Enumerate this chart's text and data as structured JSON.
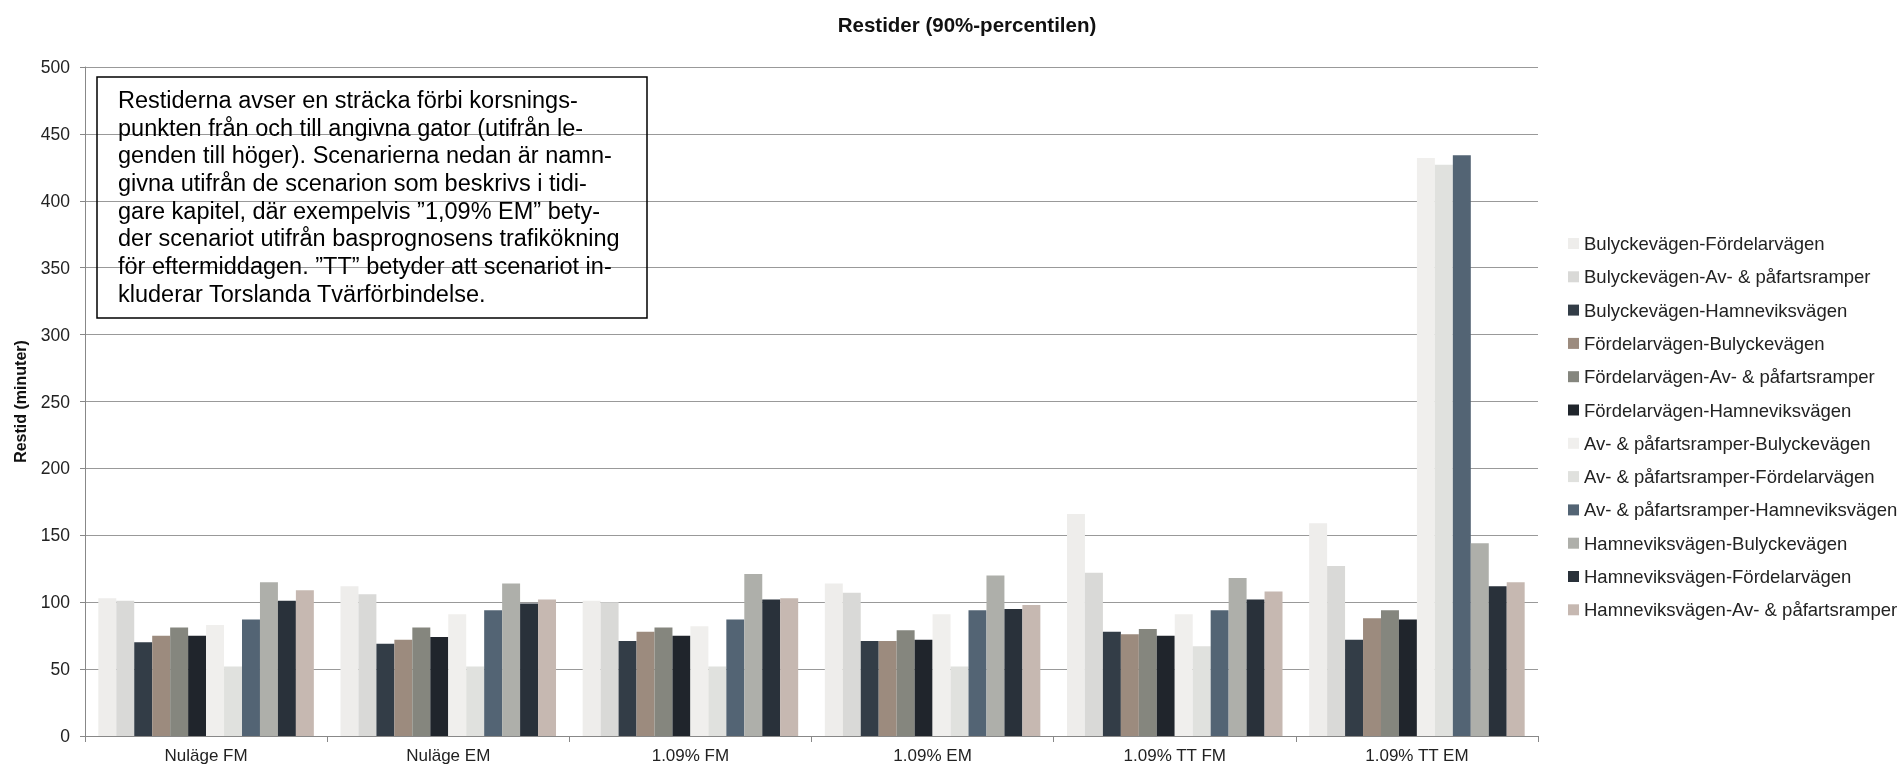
{
  "chart_data": {
    "type": "bar",
    "title": "Restider (90%-percentilen)",
    "ylabel": "Restid (minuter)",
    "annotations": [
      "Restiderna avser en sträcka förbi korsnings-\npunkten från och till angivna gator (utifrån le-\ngenden till höger). Scenarierna nedan är namn-\ngivna utifrån de scenarion som beskrivs i tidi-\ngare kapitel, där exempelvis ”1,09% EM” bety-\nder scenariot utifrån basprognosens trafikökning\nför eftermiddagen. ”TT” betyder att scenariot in-\nkluderar Torslanda Tvärförbindelse."
    ],
    "categories": [
      "Nuläge FM",
      "Nuläge EM",
      "1.09% FM",
      "1.09% EM",
      "1.09% TT FM",
      "1.09% TT EM"
    ],
    "series": [
      {
        "name": "Bulyckevägen-Fördelarvägen",
        "color": "#eeedeb",
        "values": [
          103,
          112,
          101,
          114,
          166,
          159
        ]
      },
      {
        "name": "Bulyckevägen-Av- & påfartsramper",
        "color": "#d9d9d7",
        "values": [
          101,
          106,
          100,
          107,
          122,
          127
        ]
      },
      {
        "name": "Bulyckevägen-Hamneviksvägen",
        "color": "#333d47",
        "values": [
          70,
          69,
          71,
          71,
          78,
          72
        ]
      },
      {
        "name": "Fördelarvägen-Bulyckevägen",
        "color": "#9c8b7e",
        "values": [
          75,
          72,
          78,
          71,
          76,
          88
        ]
      },
      {
        "name": "Fördelarvägen-Av- & påfartsramper",
        "color": "#85867e",
        "values": [
          81,
          81,
          81,
          79,
          80,
          94
        ]
      },
      {
        "name": "Fördelarvägen-Hamneviksvägen",
        "color": "#20252c",
        "values": [
          75,
          74,
          75,
          72,
          75,
          87
        ]
      },
      {
        "name": "Av- & påfartsramper-Bulyckevägen",
        "color": "#f0efed",
        "values": [
          83,
          91,
          82,
          91,
          91,
          432
        ]
      },
      {
        "name": "Av- & påfartsramper-Fördelarvägen",
        "color": "#e0e1de",
        "values": [
          52,
          52,
          52,
          52,
          67,
          427
        ]
      },
      {
        "name": "Av- & påfartsramper-Hamneviksvägen",
        "color": "#536474",
        "values": [
          87,
          94,
          87,
          94,
          94,
          434
        ]
      },
      {
        "name": "Hamneviksvägen-Bulyckevägen",
        "color": "#aeafaa",
        "values": [
          115,
          114,
          121,
          120,
          118,
          144
        ]
      },
      {
        "name": "Hamneviksvägen-Fördelarvägen",
        "color": "#29313a",
        "values": [
          101,
          99,
          102,
          95,
          102,
          112
        ]
      },
      {
        "name": "Hamneviksvägen-Av- & påfartsramper",
        "color": "#c6b8b1",
        "values": [
          109,
          102,
          103,
          98,
          108,
          115
        ]
      }
    ],
    "ylim": [
      0,
      500
    ],
    "yticks": [
      0,
      50,
      100,
      150,
      200,
      250,
      300,
      350,
      400,
      450,
      500
    ],
    "grid": "y",
    "legend": "right"
  }
}
